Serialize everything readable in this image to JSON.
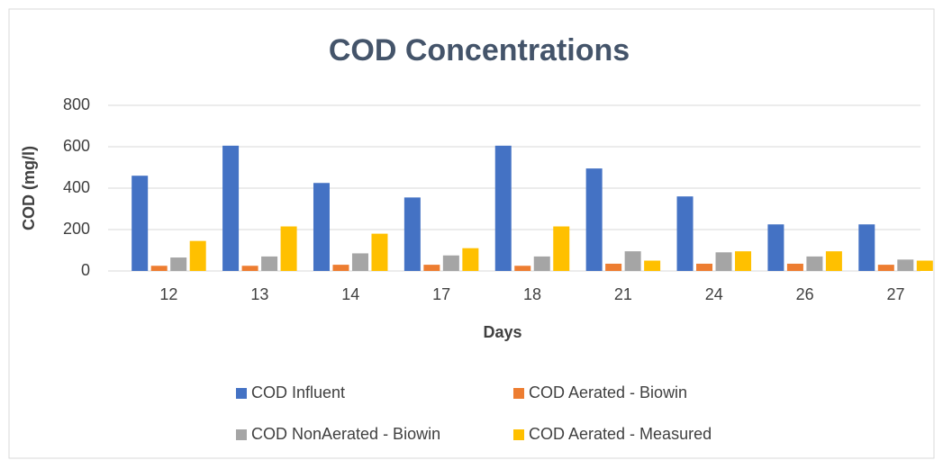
{
  "chart_data": {
    "type": "bar",
    "title": "COD Concentrations",
    "xlabel": "Days",
    "ylabel": "COD (mg/l)",
    "categories": [
      "12",
      "13",
      "14",
      "17",
      "18",
      "21",
      "24",
      "26",
      "27"
    ],
    "series": [
      {
        "name": "COD Influent",
        "color": "#4472c4",
        "values": [
          460,
          605,
          425,
          355,
          605,
          495,
          360,
          225,
          225
        ]
      },
      {
        "name": "COD Aerated - Biowin",
        "color": "#ed7d31",
        "values": [
          25,
          25,
          30,
          30,
          25,
          35,
          35,
          35,
          30
        ]
      },
      {
        "name": "COD NonAerated - Biowin",
        "color": "#a5a5a5",
        "values": [
          65,
          70,
          85,
          75,
          70,
          95,
          90,
          70,
          55
        ]
      },
      {
        "name": "COD Aerated - Measured",
        "color": "#ffc000",
        "values": [
          145,
          215,
          180,
          110,
          215,
          50,
          95,
          95,
          50
        ]
      }
    ],
    "ylim": [
      0,
      800
    ],
    "yticks": [
      0,
      200,
      400,
      600,
      800
    ],
    "grid": true,
    "legend": "bottom"
  }
}
